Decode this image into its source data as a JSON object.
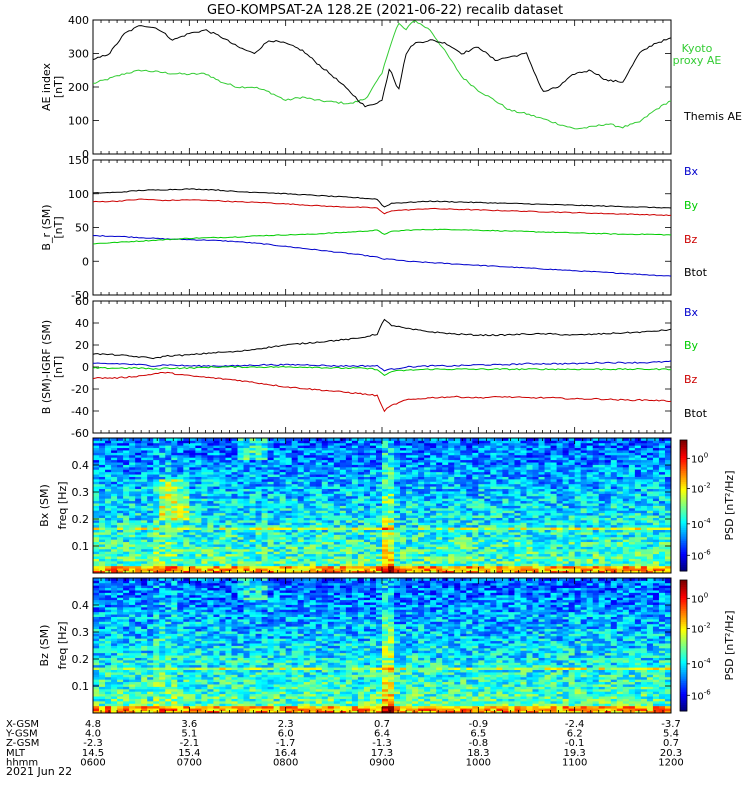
{
  "title": "GEO-KOMPSAT-2A 128.2E (2021-06-22) recalib dataset",
  "colors": {
    "black": "#000000",
    "blue": "#0000cc",
    "green": "#00cc00",
    "red": "#cc0000",
    "kyoto": "#33cc33"
  },
  "chart_data": [
    {
      "id": "ae",
      "type": "line",
      "ylabel": "AE index [nT]",
      "ylim": [
        0,
        400
      ],
      "yticks": [
        0,
        100,
        200,
        300,
        400
      ],
      "x": [
        6.0,
        6.17,
        6.33,
        6.5,
        6.67,
        6.83,
        7.0,
        7.17,
        7.33,
        7.5,
        7.67,
        7.83,
        8.0,
        8.17,
        8.33,
        8.5,
        8.67,
        8.83,
        9.0,
        9.08,
        9.17,
        9.25,
        9.33,
        9.5,
        9.67,
        9.83,
        10.0,
        10.17,
        10.33,
        10.5,
        10.67,
        10.83,
        11.0,
        11.17,
        11.33,
        11.5,
        11.67,
        11.83,
        12.0
      ],
      "series": [
        {
          "name": "Kyoto proxy AE",
          "color": "#33cc33",
          "label_lines": [
            "Kyoto",
            "proxy AE"
          ],
          "values": [
            210,
            225,
            240,
            250,
            245,
            240,
            238,
            240,
            215,
            200,
            200,
            185,
            160,
            170,
            160,
            155,
            150,
            165,
            240,
            320,
            390,
            370,
            400,
            370,
            300,
            230,
            190,
            160,
            130,
            120,
            105,
            90,
            75,
            80,
            90,
            80,
            95,
            130,
            160
          ]
        },
        {
          "name": "Themis AE",
          "color": "#000000",
          "label_lines": [
            "Themis AE"
          ],
          "values": [
            280,
            300,
            360,
            385,
            375,
            340,
            360,
            370,
            350,
            320,
            300,
            340,
            330,
            310,
            270,
            230,
            185,
            140,
            160,
            260,
            190,
            300,
            330,
            340,
            330,
            300,
            320,
            280,
            290,
            300,
            185,
            200,
            240,
            250,
            220,
            215,
            300,
            330,
            345
          ]
        }
      ]
    },
    {
      "id": "bfield",
      "type": "line",
      "ylabel": "B_r (SM) [nT]",
      "ylim": [
        -50,
        150
      ],
      "yticks": [
        -50,
        0,
        50,
        100,
        150
      ],
      "x": [
        6.0,
        6.25,
        6.5,
        6.75,
        7.0,
        7.25,
        7.5,
        7.75,
        8.0,
        8.25,
        8.5,
        8.75,
        8.95,
        9.02,
        9.1,
        9.25,
        9.5,
        9.75,
        10.0,
        10.25,
        10.5,
        10.75,
        11.0,
        11.25,
        11.5,
        11.75,
        12.0
      ],
      "series": [
        {
          "name": "Bx",
          "color": "#0000cc",
          "values": [
            38,
            37,
            35,
            33,
            32,
            31,
            29,
            26,
            22,
            18,
            14,
            10,
            6,
            3,
            3,
            0,
            -2,
            -4,
            -6,
            -8,
            -10,
            -12,
            -14,
            -16,
            -18,
            -20,
            -22
          ]
        },
        {
          "name": "By",
          "color": "#00cc00",
          "values": [
            26,
            28,
            30,
            32,
            34,
            35,
            36,
            38,
            39,
            40,
            42,
            44,
            46,
            40,
            44,
            46,
            47,
            47,
            46,
            45,
            44,
            43,
            42,
            41,
            40,
            40,
            39
          ]
        },
        {
          "name": "Bz",
          "color": "#cc0000",
          "values": [
            88,
            89,
            92,
            90,
            91,
            90,
            88,
            87,
            85,
            83,
            81,
            80,
            79,
            70,
            75,
            76,
            78,
            77,
            76,
            75,
            74,
            73,
            72,
            71,
            70,
            69,
            68
          ]
        },
        {
          "name": "Btot",
          "color": "#000000",
          "values": [
            101,
            102,
            105,
            106,
            107,
            106,
            103,
            102,
            100,
            98,
            96,
            94,
            92,
            80,
            86,
            87,
            89,
            88,
            87,
            86,
            85,
            84,
            83,
            82,
            81,
            80,
            79
          ]
        }
      ]
    },
    {
      "id": "dfield",
      "type": "line",
      "ylabel": "B (SM)-IGRF (SM) [nT]",
      "ylim": [
        -60,
        60
      ],
      "yticks": [
        -60,
        -40,
        -20,
        0,
        20,
        40,
        60
      ],
      "x": [
        6.0,
        6.25,
        6.5,
        6.65,
        6.75,
        7.0,
        7.25,
        7.5,
        7.75,
        8.0,
        8.25,
        8.5,
        8.75,
        8.95,
        9.02,
        9.1,
        9.25,
        9.5,
        9.75,
        10.0,
        10.25,
        10.5,
        10.75,
        11.0,
        11.25,
        11.5,
        11.75,
        12.0
      ],
      "series": [
        {
          "name": "Bx",
          "color": "#0000cc",
          "values": [
            3,
            3,
            2,
            1,
            2,
            1,
            1,
            1,
            2,
            2,
            2,
            1,
            1,
            1,
            -3,
            -2,
            0,
            1,
            1,
            2,
            2,
            3,
            3,
            3,
            4,
            4,
            4,
            5
          ]
        },
        {
          "name": "By",
          "color": "#00cc00",
          "values": [
            -1,
            -1,
            -1,
            -2,
            -1,
            -1,
            0,
            0,
            0,
            0,
            0,
            -1,
            -1,
            -2,
            -8,
            -4,
            -3,
            -2,
            -2,
            -2,
            -2,
            -2,
            -2,
            -2,
            -2,
            -2,
            -2,
            -2
          ]
        },
        {
          "name": "Bz",
          "color": "#cc0000",
          "values": [
            -10,
            -10,
            -8,
            -6,
            -5,
            -8,
            -10,
            -12,
            -15,
            -18,
            -20,
            -22,
            -24,
            -26,
            -40,
            -35,
            -30,
            -28,
            -27,
            -28,
            -27,
            -28,
            -28,
            -29,
            -29,
            -30,
            -30,
            -31
          ]
        },
        {
          "name": "Btot",
          "color": "#000000",
          "values": [
            12,
            11,
            9,
            8,
            10,
            11,
            13,
            14,
            17,
            20,
            22,
            24,
            26,
            30,
            43,
            38,
            35,
            32,
            30,
            29,
            29,
            30,
            30,
            29,
            30,
            31,
            32,
            34
          ]
        }
      ]
    },
    {
      "id": "spec_bx",
      "type": "heatmap",
      "ylabel": "Bx (SM)",
      "ylabel2": "freq [Hz]",
      "ylim": [
        0,
        0.5
      ],
      "yticks": [
        0.1,
        0.2,
        0.3,
        0.4
      ],
      "colorbar_label": "PSD [nT^2/Hz]",
      "colorbar_ticks": [
        "10^0",
        "10^-2",
        "10^-4",
        "10^-6"
      ]
    },
    {
      "id": "spec_bz",
      "type": "heatmap",
      "ylabel": "Bz (SM)",
      "ylabel2": "freq [Hz]",
      "ylim": [
        0,
        0.5
      ],
      "yticks": [
        0.1,
        0.2,
        0.3,
        0.4
      ],
      "colorbar_label": "PSD [nT^2/Hz]",
      "colorbar_ticks": [
        "10^0",
        "10^-2",
        "10^-4",
        "10^-6"
      ]
    }
  ],
  "orbit_table": {
    "rows": [
      {
        "label": "X-GSM",
        "values": [
          "4.8",
          "3.6",
          "2.3",
          "0.7",
          "-0.9",
          "-2.4",
          "-3.7"
        ]
      },
      {
        "label": "Y-GSM",
        "values": [
          "4.0",
          "5.1",
          "6.0",
          "6.4",
          "6.5",
          "6.2",
          "5.4"
        ]
      },
      {
        "label": "Z-GSM",
        "values": [
          "-2.3",
          "-2.1",
          "-1.7",
          "-1.3",
          "-0.8",
          "-0.1",
          "0.7"
        ]
      },
      {
        "label": "MLT",
        "values": [
          "14.5",
          "15.4",
          "16.4",
          "17.3",
          "18.3",
          "19.3",
          "20.3"
        ]
      },
      {
        "label": "hhmm",
        "values": [
          "0600",
          "0700",
          "0800",
          "0900",
          "1000",
          "1100",
          "1200"
        ]
      }
    ],
    "date": "2021 Jun 22"
  }
}
